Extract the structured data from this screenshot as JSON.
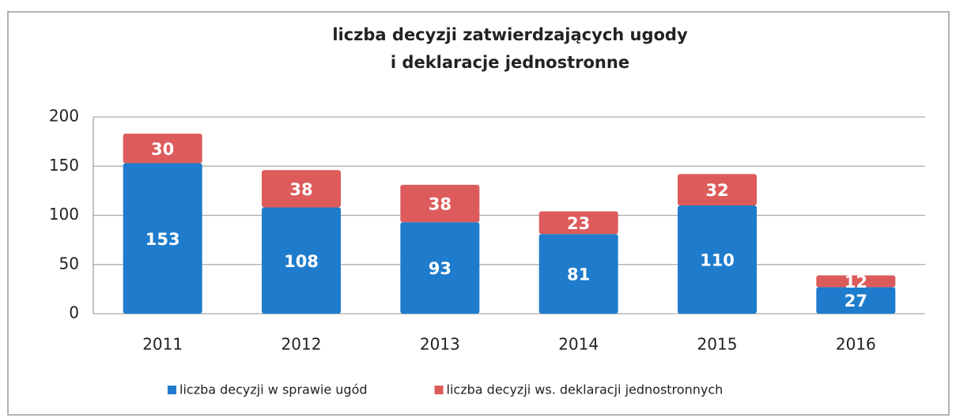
{
  "chart_data": {
    "type": "stacked_bar",
    "title": [
      "liczba decyzji zatwierdzających ugody",
      "i deklaracje jednostronne"
    ],
    "categories": [
      "2011",
      "2012",
      "2013",
      "2014",
      "2015",
      "2016"
    ],
    "series": [
      {
        "name": "liczba decyzji w sprawie ugód",
        "color": "#1f7ccc",
        "values": [
          153,
          108,
          93,
          81,
          110,
          27
        ]
      },
      {
        "name": "liczba decyzji ws. deklaracji jednostronnych",
        "color": "#dd5b5b",
        "values": [
          30,
          38,
          38,
          23,
          32,
          12
        ]
      }
    ],
    "ylim": [
      0,
      200
    ],
    "yticks": [
      0,
      50,
      100,
      150,
      200
    ],
    "grid": true,
    "legend": "bottom"
  }
}
